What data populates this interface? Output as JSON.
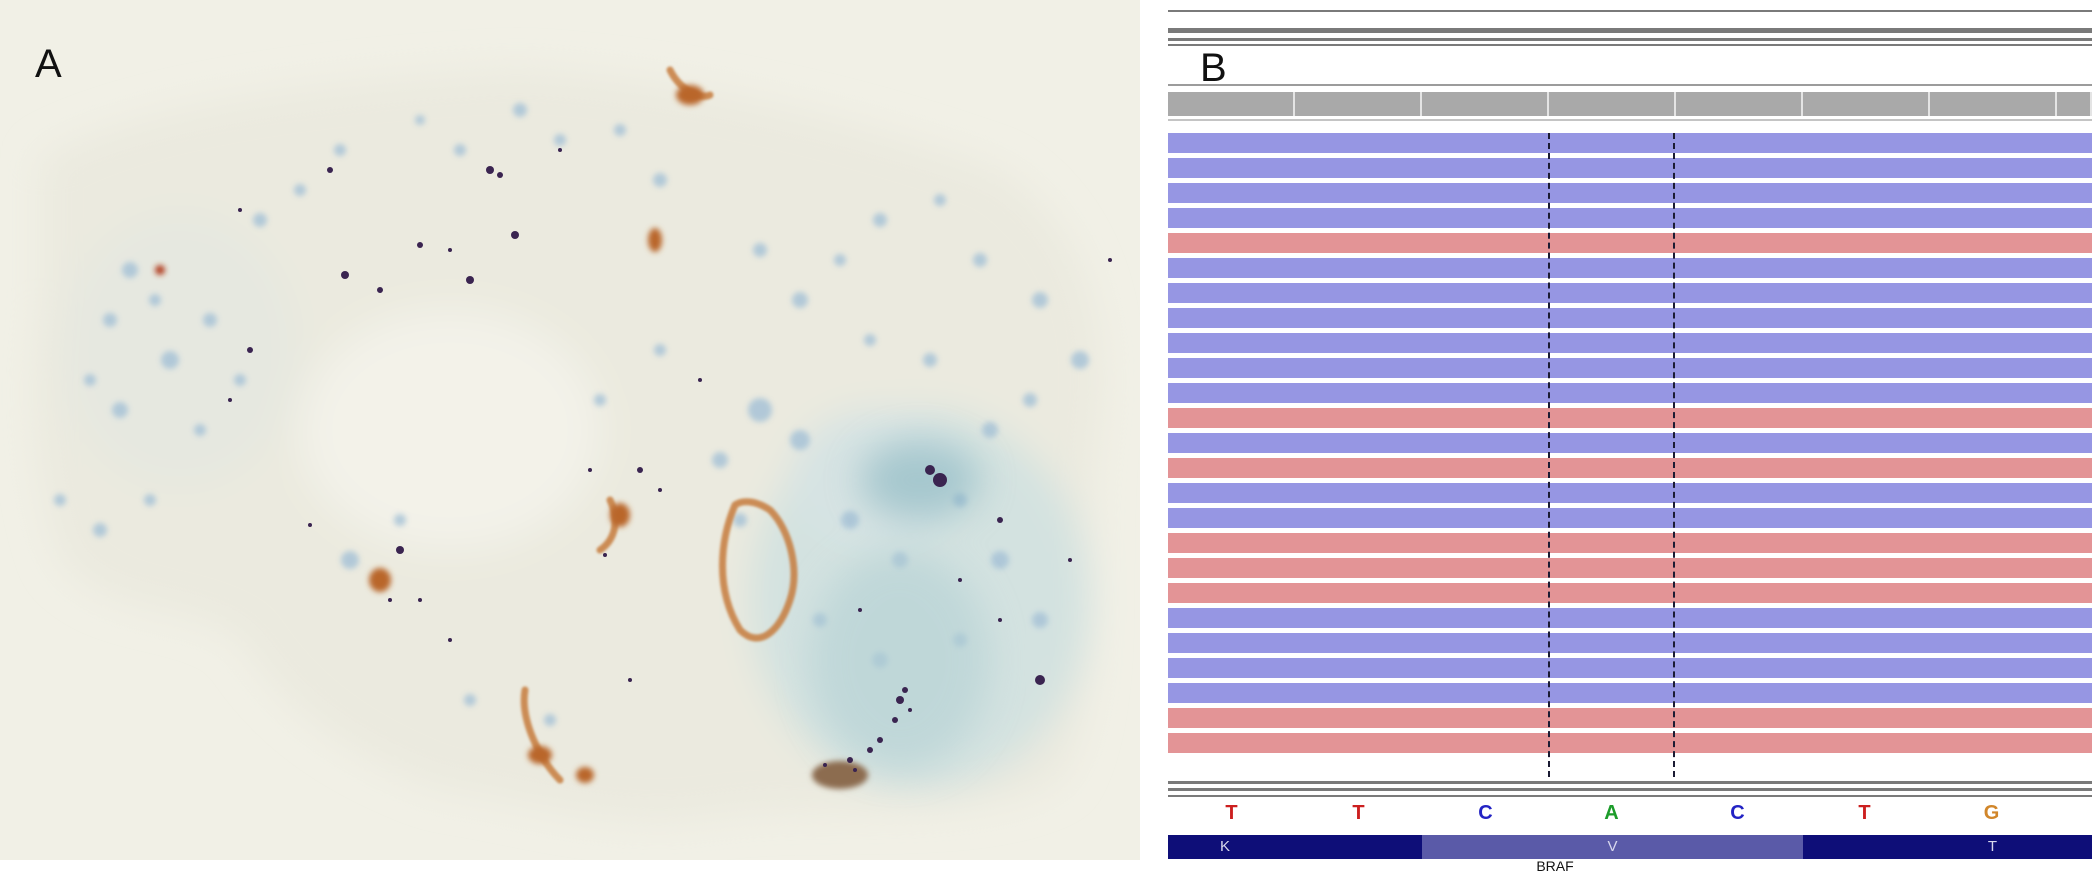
{
  "panel_a": {
    "letter": "A"
  },
  "panel_b": {
    "letter": "B",
    "reference_bases": [
      {
        "base": "T",
        "color": "#cc1f1f"
      },
      {
        "base": "T",
        "color": "#cc1f1f"
      },
      {
        "base": "C",
        "color": "#2323c4"
      },
      {
        "base": "A",
        "color": "#1c9c2a"
      },
      {
        "base": "C",
        "color": "#2323c4"
      },
      {
        "base": "T",
        "color": "#cc1f1f"
      },
      {
        "base": "G",
        "color": "#d1862a"
      }
    ],
    "amino_acids": [
      {
        "label": "K",
        "color": "#0e0e78"
      },
      {
        "label": "V",
        "color": "#5a5aa8"
      },
      {
        "label": "T",
        "color": "#0e0e78"
      }
    ],
    "gene_name": "BRAF",
    "read_colors": {
      "reference": "#9696e3",
      "variant": "#e39496"
    },
    "reads": [
      "ref",
      "ref",
      "ref",
      "ref",
      "alt",
      "ref",
      "ref",
      "ref",
      "ref",
      "ref",
      "ref",
      "alt",
      "ref",
      "alt",
      "ref",
      "ref",
      "alt",
      "alt",
      "alt",
      "ref",
      "ref",
      "ref",
      "ref",
      "alt",
      "alt"
    ]
  }
}
